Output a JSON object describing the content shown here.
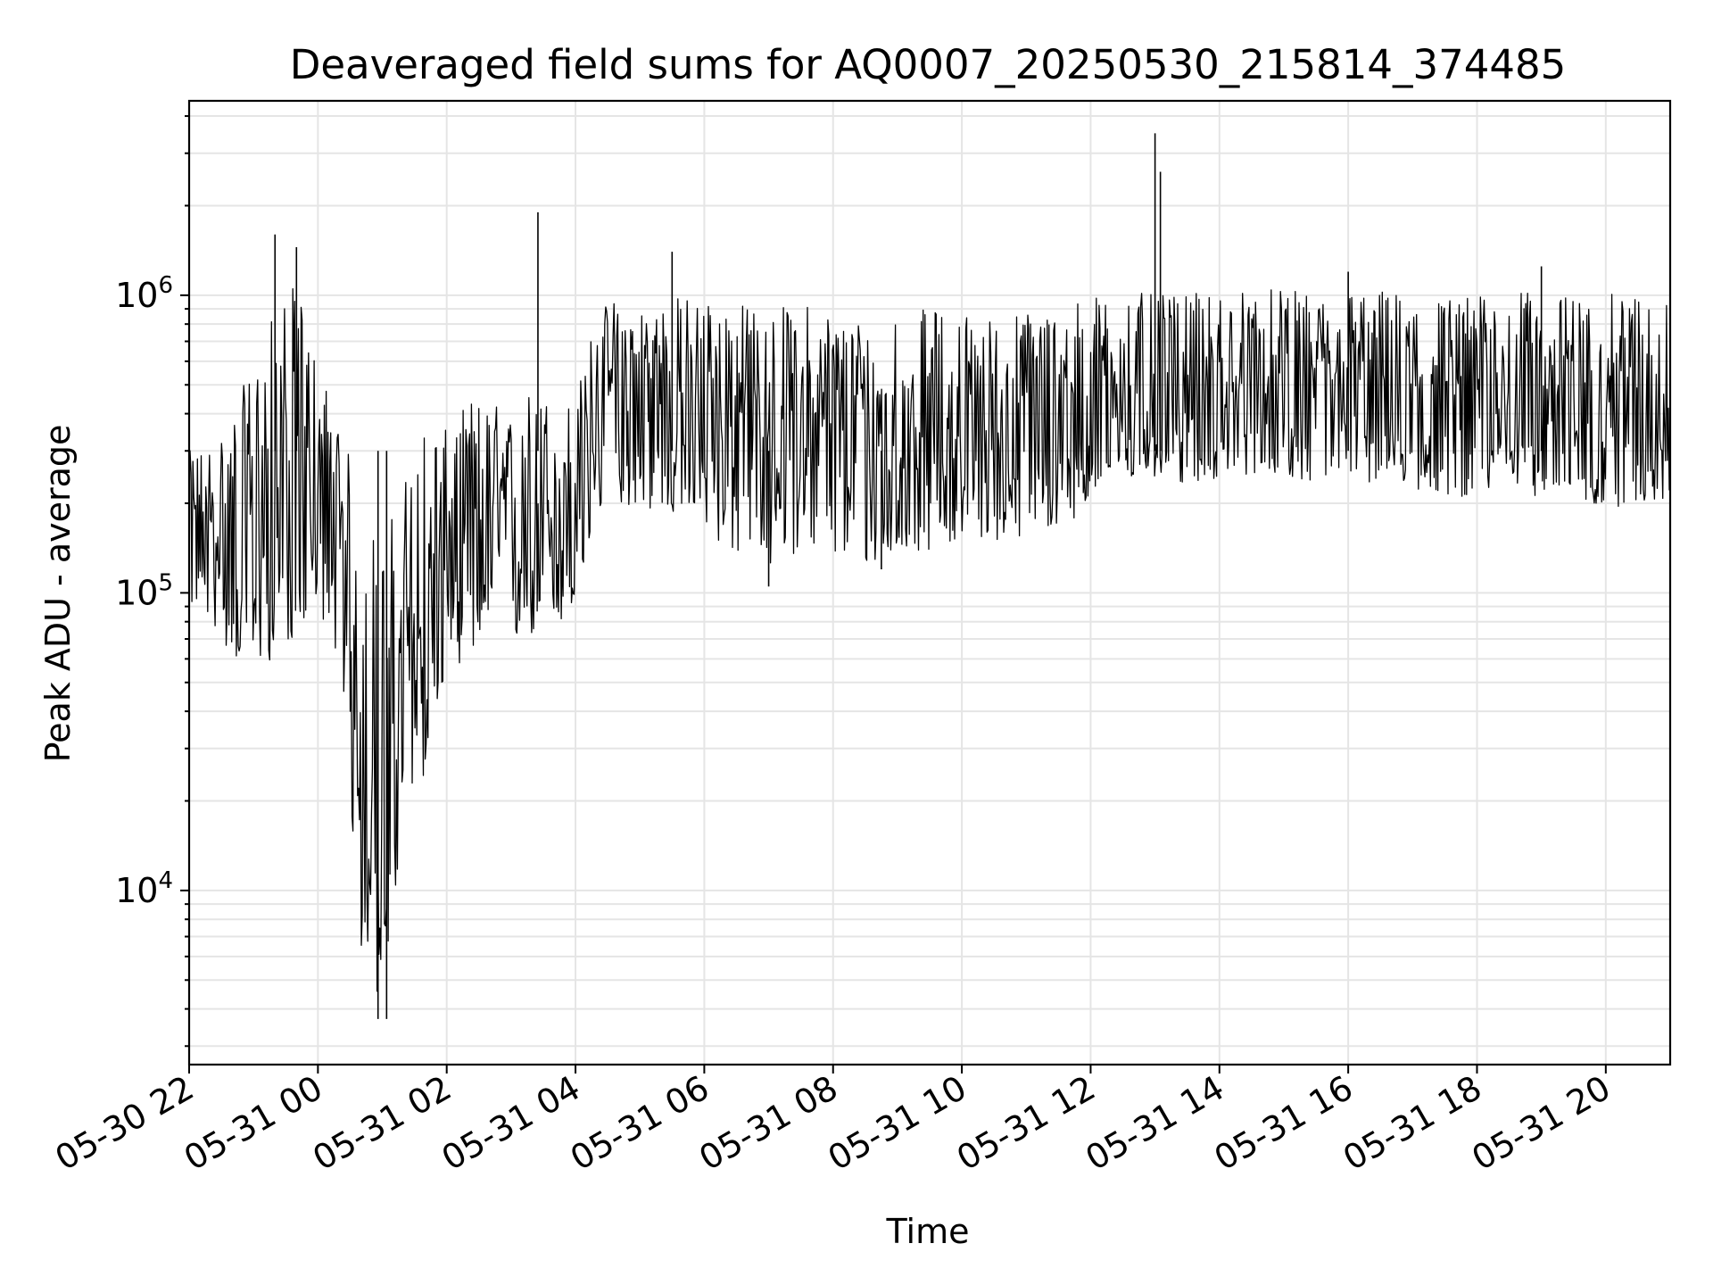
{
  "chart_data": {
    "type": "line",
    "title": "Deaveraged field sums for AQ0007_20250530_215814_374485",
    "xlabel": "Time",
    "ylabel": "Peak ADU - average",
    "yscale": "log",
    "ylim": [
      2600,
      4500000
    ],
    "xlim": [
      "2025-05-30T22:00",
      "2025-05-31T21:00"
    ],
    "grid": true,
    "line_color": "#000000",
    "x_ticks": [
      {
        "value": "2025-05-30T22:00",
        "label": "05-30 22"
      },
      {
        "value": "2025-05-31T00:00",
        "label": "05-31 00"
      },
      {
        "value": "2025-05-31T02:00",
        "label": "05-31 02"
      },
      {
        "value": "2025-05-31T04:00",
        "label": "05-31 04"
      },
      {
        "value": "2025-05-31T06:00",
        "label": "05-31 06"
      },
      {
        "value": "2025-05-31T08:00",
        "label": "05-31 08"
      },
      {
        "value": "2025-05-31T10:00",
        "label": "05-31 10"
      },
      {
        "value": "2025-05-31T12:00",
        "label": "05-31 12"
      },
      {
        "value": "2025-05-31T14:00",
        "label": "05-31 14"
      },
      {
        "value": "2025-05-31T16:00",
        "label": "05-31 16"
      },
      {
        "value": "2025-05-31T18:00",
        "label": "05-31 18"
      },
      {
        "value": "2025-05-31T20:00",
        "label": "05-31 20"
      }
    ],
    "y_ticks": [
      {
        "value": 10000,
        "base": "10",
        "exp": "4"
      },
      {
        "value": 100000,
        "base": "10",
        "exp": "5"
      },
      {
        "value": 1000000,
        "base": "10",
        "exp": "6"
      }
    ],
    "series": [
      {
        "x": [
          "2025-05-30T22:00",
          "2025-05-30T22:20",
          "2025-05-30T22:40",
          "2025-05-30T23:00",
          "2025-05-30T23:20",
          "2025-05-30T23:40",
          "2025-05-31T00:00",
          "2025-05-31T00:20",
          "2025-05-31T00:40",
          "2025-05-31T01:00",
          "2025-05-31T01:20",
          "2025-05-31T01:40",
          "2025-05-31T02:00",
          "2025-05-31T02:20",
          "2025-05-31T02:40",
          "2025-05-31T03:00",
          "2025-05-31T03:20",
          "2025-05-31T03:40",
          "2025-05-31T04:00",
          "2025-05-31T04:20",
          "2025-05-31T04:40",
          "2025-05-31T05:00",
          "2025-05-31T05:30",
          "2025-05-31T06:00",
          "2025-05-31T06:30",
          "2025-05-31T07:00",
          "2025-05-31T07:30",
          "2025-05-31T08:00",
          "2025-05-31T08:30",
          "2025-05-31T09:00",
          "2025-05-31T09:30",
          "2025-05-31T10:00",
          "2025-05-31T10:30",
          "2025-05-31T11:00",
          "2025-05-31T11:30",
          "2025-05-31T12:00",
          "2025-05-31T12:30",
          "2025-05-31T13:00",
          "2025-05-31T13:30",
          "2025-05-31T14:00",
          "2025-05-31T14:30",
          "2025-05-31T15:00",
          "2025-05-31T15:30",
          "2025-05-31T16:00",
          "2025-05-31T16:30",
          "2025-05-31T17:00",
          "2025-05-31T17:30",
          "2025-05-31T18:00",
          "2025-05-31T18:30",
          "2025-05-31T19:00",
          "2025-05-31T19:30",
          "2025-05-31T20:00",
          "2025-05-31T20:30",
          "2025-05-31T21:00"
        ],
        "y": [
          170000,
          160000,
          140000,
          150000,
          200000,
          300000,
          180000,
          120000,
          30000,
          15000,
          50000,
          80000,
          120000,
          150000,
          170000,
          160000,
          170000,
          180000,
          190000,
          420000,
          450000,
          430000,
          440000,
          420000,
          410000,
          350000,
          380000,
          360000,
          300000,
          320000,
          330000,
          340000,
          330000,
          350000,
          360000,
          420000,
          450000,
          460000,
          440000,
          450000,
          460000,
          470000,
          450000,
          480000,
          470000,
          460000,
          450000,
          460000,
          470000,
          460000,
          450000,
          460000,
          470000,
          460000
        ],
        "low": [
          90000,
          80000,
          60000,
          55000,
          60000,
          70000,
          90000,
          60000,
          6000,
          4000,
          15000,
          25000,
          55000,
          60000,
          70000,
          65000,
          70000,
          75000,
          80000,
          180000,
          200000,
          190000,
          180000,
          160000,
          130000,
          120000,
          140000,
          130000,
          120000,
          130000,
          140000,
          150000,
          150000,
          150000,
          160000,
          200000,
          230000,
          240000,
          230000,
          240000,
          250000,
          250000,
          230000,
          240000,
          230000,
          220000,
          210000,
          210000,
          220000,
          210000,
          200000,
          190000,
          200000,
          200000
        ],
        "high": [
          300000,
          320000,
          400000,
          600000,
          900000,
          1100000,
          600000,
          400000,
          200000,
          150000,
          250000,
          400000,
          350000,
          450000,
          450000,
          400000,
          500000,
          450000,
          450000,
          900000,
          1000000,
          950000,
          1000000,
          1000000,
          950000,
          900000,
          950000,
          900000,
          850000,
          900000,
          900000,
          900000,
          850000,
          900000,
          950000,
          1000000,
          1050000,
          1000000,
          1000000,
          1050000,
          1050000,
          1050000,
          1000000,
          1050000,
          1050000,
          1000000,
          1000000,
          1000000,
          1050000,
          1000000,
          1000000,
          1000000,
          1050000,
          1000000
        ]
      }
    ],
    "spikes": [
      {
        "x": "2025-05-30T23:20",
        "y": 1600000
      },
      {
        "x": "2025-05-30T23:40",
        "y": 1450000
      },
      {
        "x": "2025-05-31T00:56",
        "y": 3700
      },
      {
        "x": "2025-05-31T01:04",
        "y": 3700
      },
      {
        "x": "2025-05-31T03:25",
        "y": 1900000
      },
      {
        "x": "2025-05-31T05:30",
        "y": 1400000
      },
      {
        "x": "2025-05-31T13:00",
        "y": 3500000
      },
      {
        "x": "2025-05-31T13:05",
        "y": 2600000
      },
      {
        "x": "2025-05-31T07:00",
        "y": 105000
      },
      {
        "x": "2025-05-31T08:45",
        "y": 120000
      },
      {
        "x": "2025-05-31T19:00",
        "y": 1250000
      },
      {
        "x": "2025-05-31T16:00",
        "y": 1200000
      }
    ]
  }
}
